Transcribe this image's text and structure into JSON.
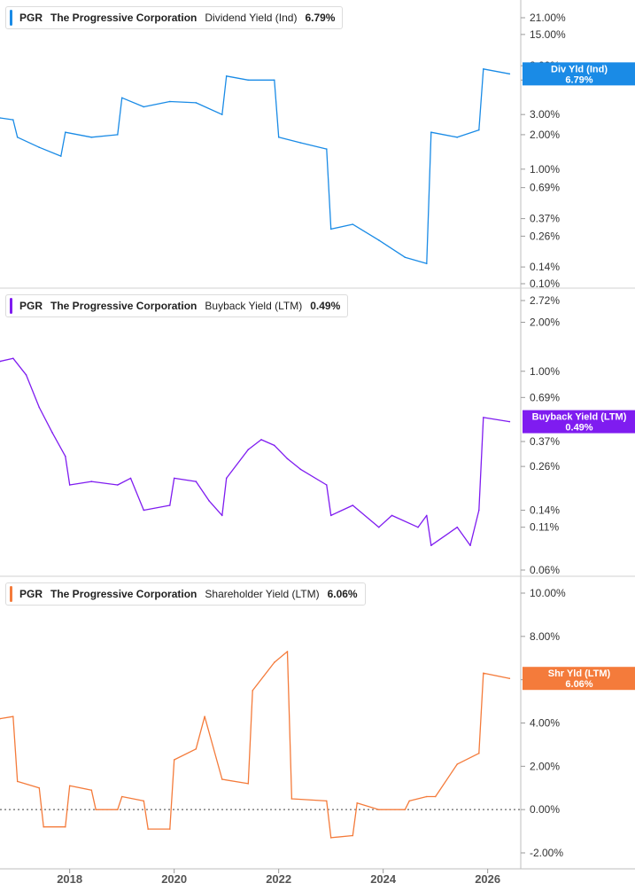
{
  "chart_data": {
    "type": "line",
    "x_axis": {
      "ticks": [
        "2018",
        "2020",
        "2022",
        "2024",
        "2026"
      ],
      "xlim": [
        "2016-09",
        "2026-09"
      ]
    },
    "panels": [
      {
        "ticker": "PGR",
        "company": "The Progressive Corporation",
        "metric": "Dividend Yield (Ind)",
        "value": "6.79%",
        "color": "#1a8be6",
        "scale": "log",
        "yticks": [
          "21.00%",
          "15.00%",
          "8.00%",
          "6.00%",
          "3.00%",
          "2.00%",
          "1.00%",
          "0.69%",
          "0.37%",
          "0.26%",
          "0.14%",
          "0.10%"
        ],
        "end_tag": {
          "label": "Div Yld (Ind)",
          "value": "6.79%"
        },
        "series": [
          {
            "x": "2016-09",
            "y": 2.8
          },
          {
            "x": "2016-12",
            "y": 2.7
          },
          {
            "x": "2017-01",
            "y": 1.9
          },
          {
            "x": "2017-06",
            "y": 1.55
          },
          {
            "x": "2017-11",
            "y": 1.3
          },
          {
            "x": "2017-12",
            "y": 2.1
          },
          {
            "x": "2018-06",
            "y": 1.9
          },
          {
            "x": "2018-12",
            "y": 2.0
          },
          {
            "x": "2019-01",
            "y": 4.2
          },
          {
            "x": "2019-06",
            "y": 3.5
          },
          {
            "x": "2019-12",
            "y": 3.9
          },
          {
            "x": "2020-06",
            "y": 3.8
          },
          {
            "x": "2020-12",
            "y": 3.0
          },
          {
            "x": "2021-01",
            "y": 6.5
          },
          {
            "x": "2021-06",
            "y": 6.0
          },
          {
            "x": "2021-12",
            "y": 6.0
          },
          {
            "x": "2022-01",
            "y": 1.9
          },
          {
            "x": "2022-06",
            "y": 1.7
          },
          {
            "x": "2022-12",
            "y": 1.5
          },
          {
            "x": "2023-01",
            "y": 0.3
          },
          {
            "x": "2023-06",
            "y": 0.33
          },
          {
            "x": "2023-12",
            "y": 0.24
          },
          {
            "x": "2024-06",
            "y": 0.17
          },
          {
            "x": "2024-11",
            "y": 0.15
          },
          {
            "x": "2024-12",
            "y": 2.1
          },
          {
            "x": "2025-06",
            "y": 1.9
          },
          {
            "x": "2025-11",
            "y": 2.2
          },
          {
            "x": "2025-12",
            "y": 7.5
          },
          {
            "x": "2026-06",
            "y": 6.79
          }
        ]
      },
      {
        "ticker": "PGR",
        "company": "The Progressive Corporation",
        "metric": "Buyback Yield (LTM)",
        "value": "0.49%",
        "color": "#7f1cf0",
        "scale": "log",
        "yticks": [
          "2.72%",
          "2.00%",
          "1.00%",
          "0.69%",
          "0.37%",
          "0.26%",
          "0.14%",
          "0.11%",
          "0.06%"
        ],
        "end_tag": {
          "label": "Buyback Yield (LTM)",
          "value": "0.49%"
        },
        "series": [
          {
            "x": "2016-09",
            "y": 1.15
          },
          {
            "x": "2016-12",
            "y": 1.2
          },
          {
            "x": "2017-03",
            "y": 0.95
          },
          {
            "x": "2017-06",
            "y": 0.6
          },
          {
            "x": "2017-09",
            "y": 0.42
          },
          {
            "x": "2017-12",
            "y": 0.3
          },
          {
            "x": "2018-01",
            "y": 0.2
          },
          {
            "x": "2018-06",
            "y": 0.21
          },
          {
            "x": "2018-12",
            "y": 0.2
          },
          {
            "x": "2019-03",
            "y": 0.22
          },
          {
            "x": "2019-06",
            "y": 0.14
          },
          {
            "x": "2019-12",
            "y": 0.15
          },
          {
            "x": "2020-01",
            "y": 0.22
          },
          {
            "x": "2020-06",
            "y": 0.21
          },
          {
            "x": "2020-09",
            "y": 0.16
          },
          {
            "x": "2020-12",
            "y": 0.13
          },
          {
            "x": "2021-01",
            "y": 0.22
          },
          {
            "x": "2021-06",
            "y": 0.33
          },
          {
            "x": "2021-09",
            "y": 0.38
          },
          {
            "x": "2021-12",
            "y": 0.35
          },
          {
            "x": "2022-03",
            "y": 0.29
          },
          {
            "x": "2022-06",
            "y": 0.25
          },
          {
            "x": "2022-12",
            "y": 0.2
          },
          {
            "x": "2023-01",
            "y": 0.13
          },
          {
            "x": "2023-06",
            "y": 0.15
          },
          {
            "x": "2023-12",
            "y": 0.11
          },
          {
            "x": "2024-03",
            "y": 0.13
          },
          {
            "x": "2024-09",
            "y": 0.11
          },
          {
            "x": "2024-11",
            "y": 0.13
          },
          {
            "x": "2024-12",
            "y": 0.085
          },
          {
            "x": "2025-06",
            "y": 0.11
          },
          {
            "x": "2025-09",
            "y": 0.085
          },
          {
            "x": "2025-11",
            "y": 0.14
          },
          {
            "x": "2025-12",
            "y": 0.52
          },
          {
            "x": "2026-06",
            "y": 0.49
          }
        ]
      },
      {
        "ticker": "PGR",
        "company": "The Progressive Corporation",
        "metric": "Shareholder Yield (LTM)",
        "value": "6.06%",
        "color": "#f47b3b",
        "scale": "linear",
        "yticks": [
          "10.00%",
          "8.00%",
          "6.00%",
          "4.00%",
          "2.00%",
          "0.00%",
          "-2.00%"
        ],
        "zero_line": true,
        "end_tag": {
          "label": "Shr Yld (LTM)",
          "value": "6.06%"
        },
        "series": [
          {
            "x": "2016-09",
            "y": 4.2
          },
          {
            "x": "2016-12",
            "y": 4.3
          },
          {
            "x": "2017-01",
            "y": 1.3
          },
          {
            "x": "2017-06",
            "y": 1.0
          },
          {
            "x": "2017-07",
            "y": -0.8
          },
          {
            "x": "2017-12",
            "y": -0.8
          },
          {
            "x": "2018-01",
            "y": 1.1
          },
          {
            "x": "2018-06",
            "y": 0.9
          },
          {
            "x": "2018-07",
            "y": 0.0
          },
          {
            "x": "2018-12",
            "y": 0.0
          },
          {
            "x": "2019-01",
            "y": 0.6
          },
          {
            "x": "2019-06",
            "y": 0.4
          },
          {
            "x": "2019-07",
            "y": -0.9
          },
          {
            "x": "2019-12",
            "y": -0.9
          },
          {
            "x": "2020-01",
            "y": 2.3
          },
          {
            "x": "2020-06",
            "y": 2.8
          },
          {
            "x": "2020-08",
            "y": 4.3
          },
          {
            "x": "2020-12",
            "y": 1.4
          },
          {
            "x": "2021-06",
            "y": 1.2
          },
          {
            "x": "2021-07",
            "y": 5.5
          },
          {
            "x": "2021-12",
            "y": 6.8
          },
          {
            "x": "2022-03",
            "y": 7.3
          },
          {
            "x": "2022-04",
            "y": 0.5
          },
          {
            "x": "2022-12",
            "y": 0.4
          },
          {
            "x": "2023-01",
            "y": -1.3
          },
          {
            "x": "2023-06",
            "y": -1.2
          },
          {
            "x": "2023-07",
            "y": 0.3
          },
          {
            "x": "2023-12",
            "y": 0.0
          },
          {
            "x": "2024-06",
            "y": 0.0
          },
          {
            "x": "2024-07",
            "y": 0.4
          },
          {
            "x": "2024-11",
            "y": 0.6
          },
          {
            "x": "2025-01",
            "y": 0.6
          },
          {
            "x": "2025-06",
            "y": 2.1
          },
          {
            "x": "2025-11",
            "y": 2.6
          },
          {
            "x": "2025-12",
            "y": 6.3
          },
          {
            "x": "2026-06",
            "y": 6.06
          }
        ]
      }
    ]
  }
}
